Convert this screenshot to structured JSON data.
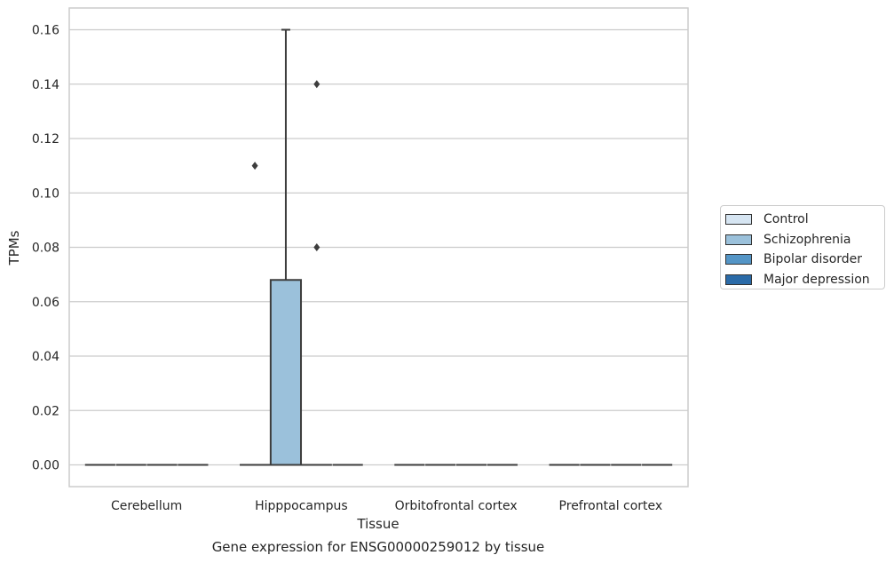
{
  "chart_data": {
    "type": "box",
    "title": "Gene expression for ENSG00000259012 by tissue",
    "xlabel": "Tissue",
    "ylabel": "TPMs",
    "categories": [
      "Cerebellum",
      "Hipppocampus",
      "Orbitofrontal cortex",
      "Prefrontal cortex"
    ],
    "ylim": [
      -0.008,
      0.168
    ],
    "yticks": [
      "0.00",
      "0.02",
      "0.04",
      "0.06",
      "0.08",
      "0.10",
      "0.12",
      "0.14",
      "0.16"
    ],
    "grid": "horizontal",
    "legend_position": "right",
    "series": [
      {
        "name": "Control",
        "color": "#d6e5f2",
        "boxes": [
          {
            "category": "Cerebellum",
            "min": 0,
            "q1": 0,
            "median": 0,
            "q3": 0,
            "max": 0,
            "outliers": []
          },
          {
            "category": "Hipppocampus",
            "min": 0,
            "q1": 0,
            "median": 0,
            "q3": 0,
            "max": 0,
            "outliers": [
              0.11
            ]
          },
          {
            "category": "Orbitofrontal cortex",
            "min": 0,
            "q1": 0,
            "median": 0,
            "q3": 0,
            "max": 0,
            "outliers": []
          },
          {
            "category": "Prefrontal cortex",
            "min": 0,
            "q1": 0,
            "median": 0,
            "q3": 0,
            "max": 0,
            "outliers": []
          }
        ]
      },
      {
        "name": "Schizophrenia",
        "color": "#9bc1db",
        "boxes": [
          {
            "category": "Cerebellum",
            "min": 0,
            "q1": 0,
            "median": 0,
            "q3": 0,
            "max": 0,
            "outliers": []
          },
          {
            "category": "Hipppocampus",
            "min": 0,
            "q1": 0,
            "median": 0,
            "q3": 0.068,
            "max": 0.16,
            "outliers": []
          },
          {
            "category": "Orbitofrontal cortex",
            "min": 0,
            "q1": 0,
            "median": 0,
            "q3": 0,
            "max": 0,
            "outliers": []
          },
          {
            "category": "Prefrontal cortex",
            "min": 0,
            "q1": 0,
            "median": 0,
            "q3": 0,
            "max": 0,
            "outliers": []
          }
        ]
      },
      {
        "name": "Bipolar disorder",
        "color": "#5495c6",
        "boxes": [
          {
            "category": "Cerebellum",
            "min": 0,
            "q1": 0,
            "median": 0,
            "q3": 0,
            "max": 0,
            "outliers": []
          },
          {
            "category": "Hipppocampus",
            "min": 0,
            "q1": 0,
            "median": 0,
            "q3": 0,
            "max": 0,
            "outliers": [
              0.14,
              0.08
            ]
          },
          {
            "category": "Orbitofrontal cortex",
            "min": 0,
            "q1": 0,
            "median": 0,
            "q3": 0,
            "max": 0,
            "outliers": []
          },
          {
            "category": "Prefrontal cortex",
            "min": 0,
            "q1": 0,
            "median": 0,
            "q3": 0,
            "max": 0,
            "outliers": []
          }
        ]
      },
      {
        "name": "Major depression",
        "color": "#2b6ba8",
        "boxes": [
          {
            "category": "Cerebellum",
            "min": 0,
            "q1": 0,
            "median": 0,
            "q3": 0,
            "max": 0,
            "outliers": []
          },
          {
            "category": "Hipppocampus",
            "min": 0,
            "q1": 0,
            "median": 0,
            "q3": 0,
            "max": 0,
            "outliers": []
          },
          {
            "category": "Orbitofrontal cortex",
            "min": 0,
            "q1": 0,
            "median": 0,
            "q3": 0,
            "max": 0,
            "outliers": []
          },
          {
            "category": "Prefrontal cortex",
            "min": 0,
            "q1": 0,
            "median": 0,
            "q3": 0,
            "max": 0,
            "outliers": []
          }
        ]
      }
    ]
  }
}
